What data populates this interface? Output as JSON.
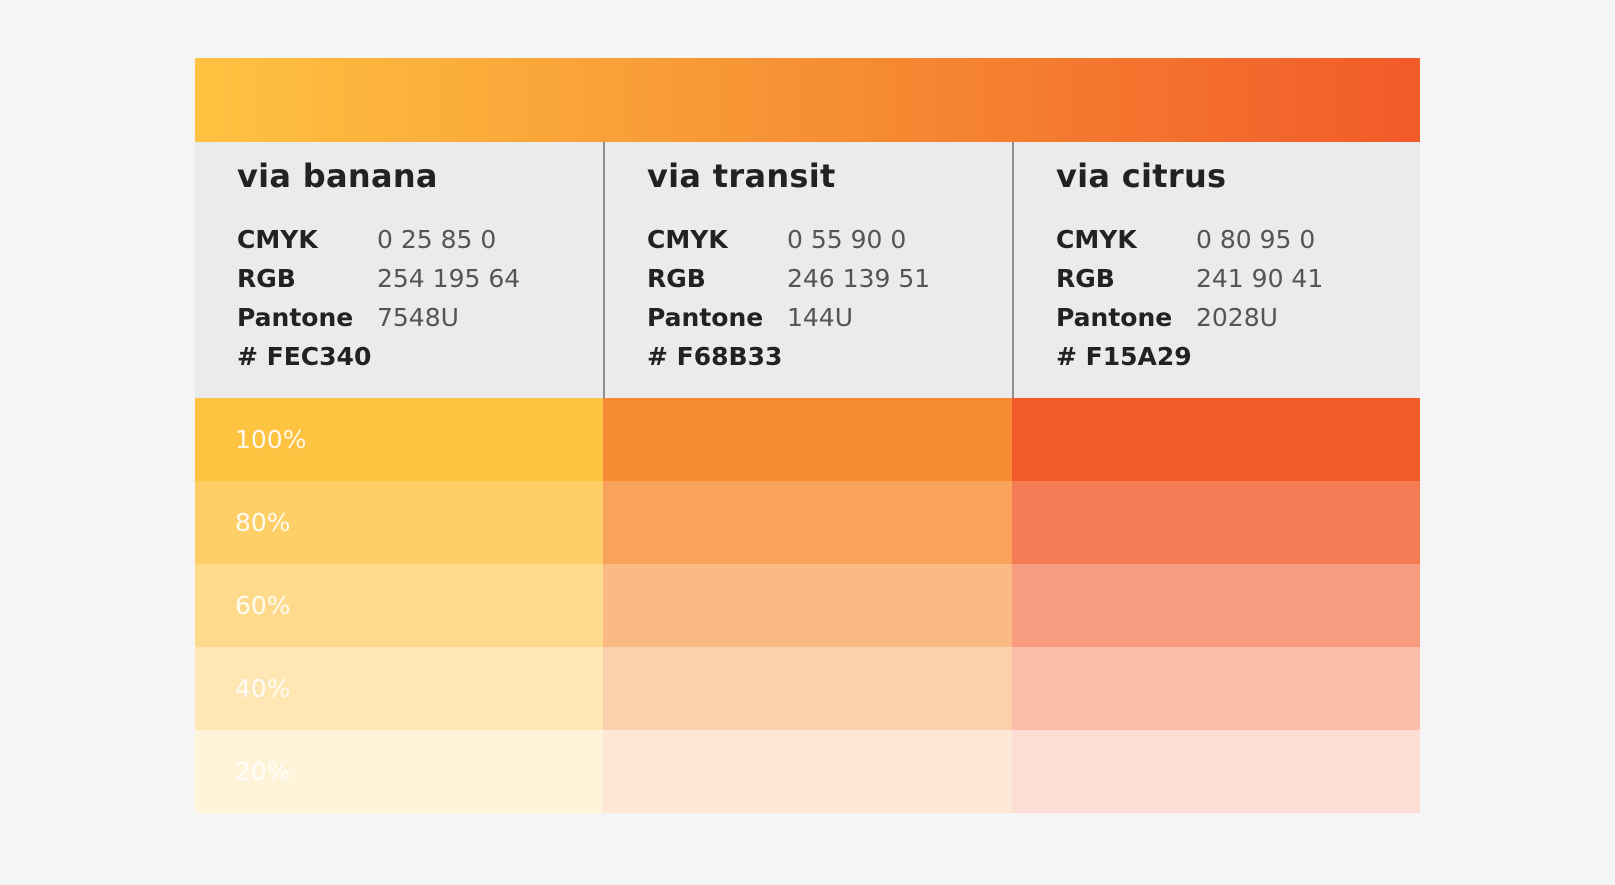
{
  "background": "#f5f5f5",
  "gradient": {
    "start": "#fec340",
    "middle": "#f68b33",
    "end": "#f15a29"
  },
  "spec_labels": {
    "cmyk": "CMYK",
    "rgb": "RGB",
    "pantone": "Pantone"
  },
  "tint_levels": [
    {
      "label": "100%",
      "opacity": 1.0
    },
    {
      "label": "80%",
      "opacity": 0.8
    },
    {
      "label": "60%",
      "opacity": 0.6
    },
    {
      "label": "40%",
      "opacity": 0.4
    },
    {
      "label": "20%",
      "opacity": 0.2
    }
  ],
  "colors": [
    {
      "name": "via banana",
      "cmyk": "0 25 85 0",
      "rgb": "254 195 64",
      "pantone": "7548U",
      "hex": "# FEC340",
      "swatch": "#fec340"
    },
    {
      "name": "via transit",
      "cmyk": "0 55 90 0",
      "rgb": "246 139 51",
      "pantone": "144U",
      "hex": "# F68B33",
      "swatch": "#f68b33"
    },
    {
      "name": "via citrus",
      "cmyk": "0 80 95 0",
      "rgb": "241 90 41",
      "pantone": "2028U",
      "hex": "# F15A29",
      "swatch": "#f15a29"
    }
  ]
}
